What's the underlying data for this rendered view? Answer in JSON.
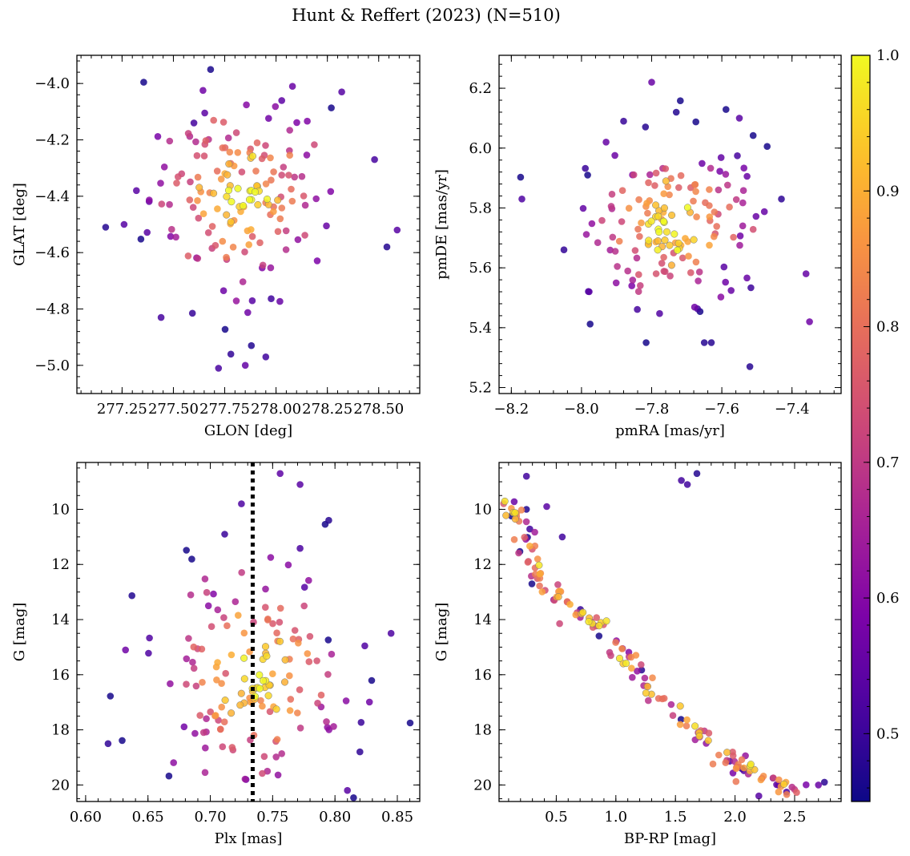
{
  "figure": {
    "title": "Hunt & Reffert (2023) (N=510)"
  },
  "colorbar": {
    "cmap": "plasma",
    "range": [
      0.45,
      1.0
    ],
    "ticks": [
      0.5,
      0.6,
      0.7,
      0.8,
      0.9,
      1.0
    ],
    "tick_labels": [
      "0.5",
      "0.6",
      "0.7",
      "0.8",
      "0.9",
      "1.0"
    ]
  },
  "chart_data": [
    {
      "id": "sky",
      "type": "scatter",
      "title": "",
      "xlabel": "GLON [deg]",
      "ylabel": "GLAT [deg]",
      "xlim": [
        277.03,
        278.7
      ],
      "ylim": [
        -5.1,
        -3.9
      ],
      "y_inverted": false,
      "xticks": [
        277.25,
        277.5,
        277.75,
        278.0,
        278.25,
        278.5
      ],
      "xtick_labels": [
        "277.25",
        "277.50",
        "277.75",
        "278.00",
        "278.25",
        "278.50"
      ],
      "yticks": [
        -5.0,
        -4.8,
        -4.6,
        -4.4,
        -4.2,
        -4.0
      ],
      "ytick_labels": [
        "−5.0",
        "−4.8",
        "−4.6",
        "−4.4",
        "−4.2",
        "−4.0"
      ],
      "center": [
        277.82,
        -4.4
      ],
      "spread": [
        0.22,
        0.18
      ],
      "outliers": [
        [
          277.17,
          -4.51
        ],
        [
          277.26,
          -4.5
        ],
        [
          277.32,
          -4.38
        ],
        [
          277.44,
          -4.83
        ],
        [
          277.6,
          -4.14
        ],
        [
          278.08,
          -4.01
        ],
        [
          278.32,
          -4.03
        ],
        [
          278.48,
          -4.27
        ],
        [
          278.59,
          -4.52
        ],
        [
          278.54,
          -4.58
        ],
        [
          277.78,
          -4.96
        ],
        [
          277.95,
          -4.97
        ],
        [
          277.85,
          -5.0
        ],
        [
          277.72,
          -5.01
        ],
        [
          277.88,
          -4.93
        ]
      ]
    },
    {
      "id": "pm",
      "type": "scatter",
      "title": "",
      "xlabel": "pmRA [mas/yr]",
      "ylabel": "pmDE [mas/yr]",
      "xlim": [
        -8.235,
        -7.26
      ],
      "ylim": [
        5.18,
        6.31
      ],
      "y_inverted": false,
      "xticks": [
        -8.2,
        -8.0,
        -7.8,
        -7.6,
        -7.4
      ],
      "xtick_labels": [
        "−8.2",
        "−8.0",
        "−7.8",
        "−7.6",
        "−7.4"
      ],
      "yticks": [
        5.2,
        5.4,
        5.6,
        5.8,
        6.0,
        6.2
      ],
      "ytick_labels": [
        "5.2",
        "5.4",
        "5.6",
        "5.8",
        "6.0",
        "6.2"
      ],
      "center": [
        -7.74,
        5.74
      ],
      "spread": [
        0.13,
        0.13
      ],
      "outliers": [
        [
          -8.17,
          5.83
        ],
        [
          -8.05,
          5.66
        ],
        [
          -7.8,
          6.22
        ],
        [
          -7.52,
          5.27
        ],
        [
          -7.36,
          5.58
        ],
        [
          -7.35,
          5.42
        ],
        [
          -7.63,
          5.35
        ],
        [
          -7.65,
          5.35
        ],
        [
          -7.93,
          6.02
        ],
        [
          -7.43,
          5.83
        ],
        [
          -7.88,
          6.09
        ],
        [
          -7.73,
          6.12
        ],
        [
          -7.55,
          6.1
        ]
      ]
    },
    {
      "id": "plx",
      "type": "scatter",
      "title": "",
      "xlabel": "Plx [mas]",
      "ylabel": "G [mag]",
      "xlim": [
        0.593,
        0.868
      ],
      "ylim": [
        20.6,
        8.3
      ],
      "y_inverted": true,
      "xticks": [
        0.6,
        0.65,
        0.7,
        0.75,
        0.8,
        0.85
      ],
      "xtick_labels": [
        "0.60",
        "0.65",
        "0.70",
        "0.75",
        "0.80",
        "0.85"
      ],
      "yticks": [
        10,
        12,
        14,
        16,
        18,
        20
      ],
      "ytick_labels": [
        "10",
        "12",
        "14",
        "16",
        "18",
        "20"
      ],
      "vline_x": 0.734,
      "center": [
        0.734,
        16.0
      ],
      "spread": [
        0.04,
        2.2
      ],
      "outliers": [
        [
          0.618,
          18.5
        ],
        [
          0.632,
          15.1
        ],
        [
          0.845,
          14.5
        ],
        [
          0.772,
          9.1
        ],
        [
          0.725,
          9.8
        ],
        [
          0.756,
          8.7
        ],
        [
          0.795,
          10.4
        ],
        [
          0.81,
          20.2
        ],
        [
          0.82,
          18.8
        ]
      ]
    },
    {
      "id": "cmd",
      "type": "scatter",
      "title": "",
      "xlabel": "BP-RP [mag]",
      "ylabel": "G [mag]",
      "xlim": [
        0.02,
        2.89
      ],
      "ylim": [
        20.6,
        8.3
      ],
      "y_inverted": true,
      "xticks": [
        0.5,
        1.0,
        1.5,
        2.0,
        2.5
      ],
      "xtick_labels": [
        "0.5",
        "1.0",
        "1.5",
        "2.0",
        "2.5"
      ],
      "yticks": [
        10,
        12,
        14,
        16,
        18,
        20
      ],
      "ytick_labels": [
        "10",
        "12",
        "14",
        "16",
        "18",
        "20"
      ],
      "sequence": [
        [
          0.1,
          9.6
        ],
        [
          0.18,
          10.5
        ],
        [
          0.3,
          11.8
        ],
        [
          0.45,
          12.9
        ],
        [
          0.6,
          13.5
        ],
        [
          0.8,
          14.1
        ],
        [
          1.0,
          15.0
        ],
        [
          1.15,
          15.8
        ],
        [
          1.3,
          16.6
        ],
        [
          1.5,
          17.5
        ],
        [
          1.7,
          18.2
        ],
        [
          1.9,
          18.9
        ],
        [
          2.1,
          19.4
        ],
        [
          2.3,
          19.9
        ],
        [
          2.5,
          20.2
        ]
      ],
      "outliers": [
        [
          0.25,
          8.8
        ],
        [
          1.6,
          9.1
        ],
        [
          1.68,
          8.7
        ],
        [
          1.55,
          8.95
        ],
        [
          0.55,
          11.0
        ],
        [
          2.75,
          19.9
        ],
        [
          2.7,
          20.0
        ],
        [
          2.2,
          20.4
        ],
        [
          0.25,
          10.0
        ],
        [
          0.42,
          9.9
        ]
      ]
    }
  ]
}
